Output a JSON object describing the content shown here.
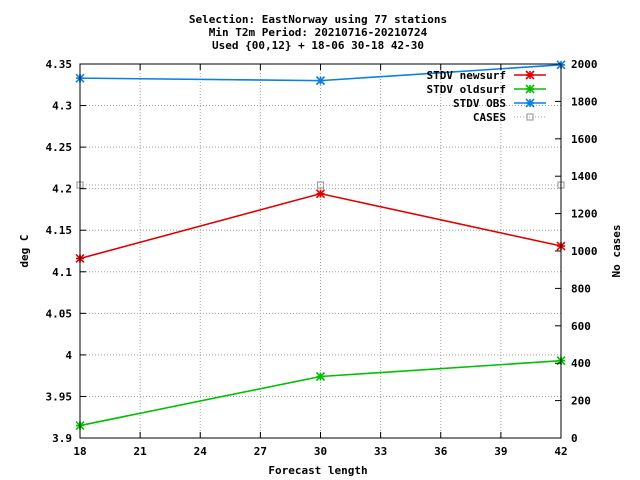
{
  "chart_data": {
    "type": "line",
    "title_lines": [
      "Selection: EastNorway using    77 stations",
      "Min T2m   Period: 20210716-20210724",
      "Used {00,12} + 18-06 30-18 42-30"
    ],
    "xlabel": "Forecast length",
    "ylabel": "deg C",
    "y2label": "No cases",
    "x_ticks": [
      "18",
      "21",
      "24",
      "27",
      "30",
      "33",
      "36",
      "39",
      "42"
    ],
    "xlim": [
      18,
      42
    ],
    "y_ticks": [
      "3.9",
      "3.95",
      "4",
      "4.05",
      "4.1",
      "4.15",
      "4.2",
      "4.25",
      "4.3",
      "4.35"
    ],
    "ylim": [
      3.9,
      4.35
    ],
    "y2_ticks": [
      "0",
      "200",
      "400",
      "600",
      "800",
      "1000",
      "1200",
      "1400",
      "1600",
      "1800",
      "2000"
    ],
    "y2lim": [
      0,
      2000
    ],
    "grid": true,
    "legend_position": "top-right",
    "series": [
      {
        "name": "STDV newsurf",
        "color": "#e00000",
        "marker": "star",
        "axis": "y",
        "dash": false,
        "x": [
          18,
          30,
          42
        ],
        "values": [
          4.116,
          4.194,
          4.131
        ]
      },
      {
        "name": "STDV oldsurf",
        "color": "#00c000",
        "marker": "star",
        "axis": "y",
        "dash": false,
        "x": [
          18,
          30,
          42
        ],
        "values": [
          3.915,
          3.974,
          3.993
        ]
      },
      {
        "name": "STDV OBS",
        "color": "#0a80e0",
        "marker": "star",
        "axis": "y",
        "dash": false,
        "x": [
          18,
          30,
          42
        ],
        "values": [
          4.333,
          4.33,
          4.349
        ]
      },
      {
        "name": "CASES",
        "color": "#a0a0a0",
        "marker": "square",
        "axis": "y2",
        "dash": true,
        "x": [
          18,
          30,
          42
        ],
        "values": [
          1353,
          1353,
          1353
        ]
      }
    ]
  }
}
